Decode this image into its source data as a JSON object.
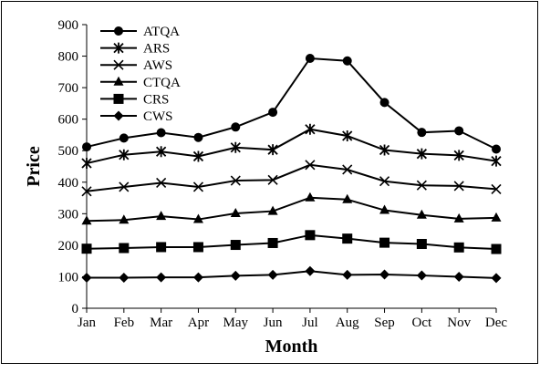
{
  "chart_data": {
    "type": "line",
    "xlabel": "Month",
    "ylabel": "Price",
    "ylim": [
      0,
      900
    ],
    "yticks": [
      0,
      100,
      200,
      300,
      400,
      500,
      600,
      700,
      800,
      900
    ],
    "categories": [
      "Jan",
      "Feb",
      "Mar",
      "Apr",
      "May",
      "Jun",
      "Jul",
      "Aug",
      "Sep",
      "Oct",
      "Nov",
      "Dec"
    ],
    "legend_position": "top-left",
    "grid": false,
    "series": [
      {
        "name": "ATQA",
        "marker": "circle",
        "values": [
          512,
          540,
          557,
          542,
          575,
          622,
          793,
          785,
          653,
          558,
          563,
          505
        ]
      },
      {
        "name": "ARS",
        "marker": "asterisk",
        "values": [
          460,
          487,
          497,
          482,
          510,
          503,
          568,
          547,
          502,
          490,
          485,
          467
        ]
      },
      {
        "name": "AWS",
        "marker": "cross",
        "values": [
          371,
          385,
          398,
          385,
          405,
          407,
          455,
          440,
          403,
          390,
          388,
          378
        ]
      },
      {
        "name": "CTQA",
        "marker": "triangle",
        "values": [
          277,
          280,
          292,
          282,
          301,
          308,
          351,
          345,
          311,
          296,
          284,
          287
        ]
      },
      {
        "name": "CRS",
        "marker": "square",
        "values": [
          189,
          191,
          194,
          194,
          201,
          207,
          232,
          221,
          208,
          204,
          193,
          188
        ]
      },
      {
        "name": "CWS",
        "marker": "diamond",
        "values": [
          97,
          97,
          98,
          98,
          103,
          106,
          118,
          106,
          107,
          104,
          100,
          96
        ]
      }
    ]
  }
}
